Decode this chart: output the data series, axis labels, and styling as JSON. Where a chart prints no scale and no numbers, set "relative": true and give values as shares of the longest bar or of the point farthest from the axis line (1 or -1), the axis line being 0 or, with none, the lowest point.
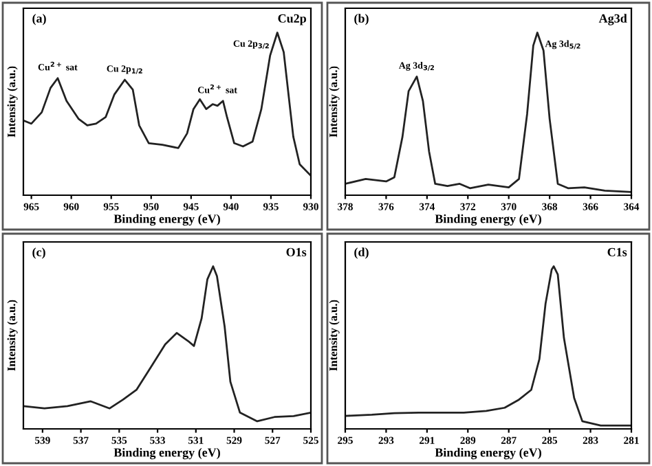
{
  "chart_data": [
    {
      "type": "line",
      "title": "Cu2p",
      "xlabel": "Binding energy (eV)",
      "ylabel": "Intensity (a.u.)",
      "relative": true,
      "xlim": [
        966,
        930
      ],
      "xticks": [
        965,
        960,
        955,
        950,
        945,
        940,
        935,
        930
      ],
      "grid": false,
      "legend": false,
      "annotations": [
        "(a)",
        {
          "text": "Cu$^{2+}$ sat",
          "x": 961.7,
          "y": 0.72
        },
        {
          "text": "Cu 2p$_{1/2}$",
          "x": 953.3,
          "y": 0.71
        },
        {
          "text": "Cu$^{2+}$ sat",
          "x": 941.7,
          "y": 0.58
        },
        {
          "text": "Cu 2p$_{3/2}$",
          "x": 934.2,
          "y": 1.0
        }
      ],
      "series": [
        {
          "color": "#222222",
          "x": [
            966,
            965,
            963.7,
            962.6,
            961.7,
            960.6,
            959.1,
            958.0,
            956.9,
            955.7,
            954.6,
            953.3,
            952.3,
            951.5,
            950.3,
            948.6,
            946.6,
            945.5,
            944.7,
            943.9,
            943.1,
            942.3,
            941.7,
            941.0,
            940.5,
            939.6,
            938.5,
            937.3,
            936.2,
            935.1,
            934.2,
            933.4,
            932.2,
            931.4,
            930
          ],
          "values": [
            0.46,
            0.44,
            0.51,
            0.66,
            0.72,
            0.58,
            0.47,
            0.43,
            0.44,
            0.48,
            0.62,
            0.71,
            0.65,
            0.43,
            0.32,
            0.31,
            0.29,
            0.38,
            0.53,
            0.59,
            0.53,
            0.56,
            0.55,
            0.58,
            0.48,
            0.32,
            0.3,
            0.33,
            0.53,
            0.86,
            1.0,
            0.88,
            0.36,
            0.19,
            0.12
          ]
        }
      ]
    },
    {
      "type": "line",
      "title": "Ag3d",
      "xlabel": "Binding energy (eV)",
      "ylabel": "Intensity (a.u.)",
      "relative": true,
      "xlim": [
        378,
        364
      ],
      "xticks": [
        378,
        376,
        374,
        372,
        370,
        368,
        366,
        364
      ],
      "grid": false,
      "legend": false,
      "annotations": [
        "(b)",
        {
          "text": "Ag 3d$_{3/2}$",
          "x": 374.5,
          "y": 0.73
        },
        {
          "text": "Ag 3d$_{5/2}$",
          "x": 368.6,
          "y": 1.0
        }
      ],
      "series": [
        {
          "color": "#222222",
          "x": [
            378,
            377.0,
            376.0,
            375.6,
            375.2,
            374.9,
            374.5,
            374.2,
            373.9,
            373.6,
            373.0,
            372.4,
            371.9,
            371.0,
            370.0,
            369.5,
            369.1,
            368.8,
            368.6,
            368.3,
            368.0,
            367.6,
            367.1,
            366.3,
            365.3,
            364
          ],
          "values": [
            0.07,
            0.1,
            0.085,
            0.11,
            0.36,
            0.64,
            0.73,
            0.58,
            0.27,
            0.07,
            0.057,
            0.07,
            0.043,
            0.065,
            0.048,
            0.1,
            0.5,
            0.92,
            1.0,
            0.89,
            0.47,
            0.07,
            0.043,
            0.048,
            0.028,
            0.02
          ]
        }
      ]
    },
    {
      "type": "line",
      "title": "O1s",
      "xlabel": "Binding energy (eV)",
      "ylabel": "Intensity (a.u.)",
      "relative": true,
      "xlim": [
        540,
        525
      ],
      "xticks": [
        539,
        537,
        535,
        533,
        531,
        529,
        527,
        525
      ],
      "grid": false,
      "legend": false,
      "annotations": [
        "(c)"
      ],
      "series": [
        {
          "color": "#222222",
          "x": [
            540,
            538.9,
            537.7,
            536.5,
            535.5,
            534.8,
            534.1,
            533.4,
            532.6,
            532.0,
            531.4,
            531.1,
            530.7,
            530.4,
            530.1,
            529.9,
            529.5,
            529.2,
            528.7,
            527.8,
            526.9,
            525.9,
            525
          ],
          "values": [
            0.14,
            0.126,
            0.14,
            0.17,
            0.126,
            0.18,
            0.24,
            0.37,
            0.52,
            0.59,
            0.54,
            0.51,
            0.68,
            0.92,
            1.0,
            0.94,
            0.63,
            0.29,
            0.1,
            0.047,
            0.073,
            0.079,
            0.1
          ]
        }
      ]
    },
    {
      "type": "line",
      "title": "C1s",
      "xlabel": "Binding energy (eV)",
      "ylabel": "Intensity (a.u.)",
      "relative": true,
      "xlim": [
        295,
        281
      ],
      "xticks": [
        295,
        293,
        291,
        289,
        287,
        285,
        283,
        281
      ],
      "grid": false,
      "legend": false,
      "annotations": [
        "(d)"
      ],
      "series": [
        {
          "color": "#222222",
          "x": [
            295,
            293.7,
            292.6,
            291.4,
            290.3,
            289.2,
            288.1,
            287.2,
            286.5,
            285.9,
            285.5,
            285.2,
            284.9,
            284.8,
            284.6,
            284.3,
            283.8,
            283.4,
            282.5,
            281
          ],
          "values": [
            0.08,
            0.087,
            0.097,
            0.1,
            0.1,
            0.1,
            0.11,
            0.13,
            0.18,
            0.24,
            0.43,
            0.77,
            0.98,
            1.0,
            0.95,
            0.56,
            0.19,
            0.047,
            0.021,
            0.021
          ]
        }
      ]
    }
  ]
}
